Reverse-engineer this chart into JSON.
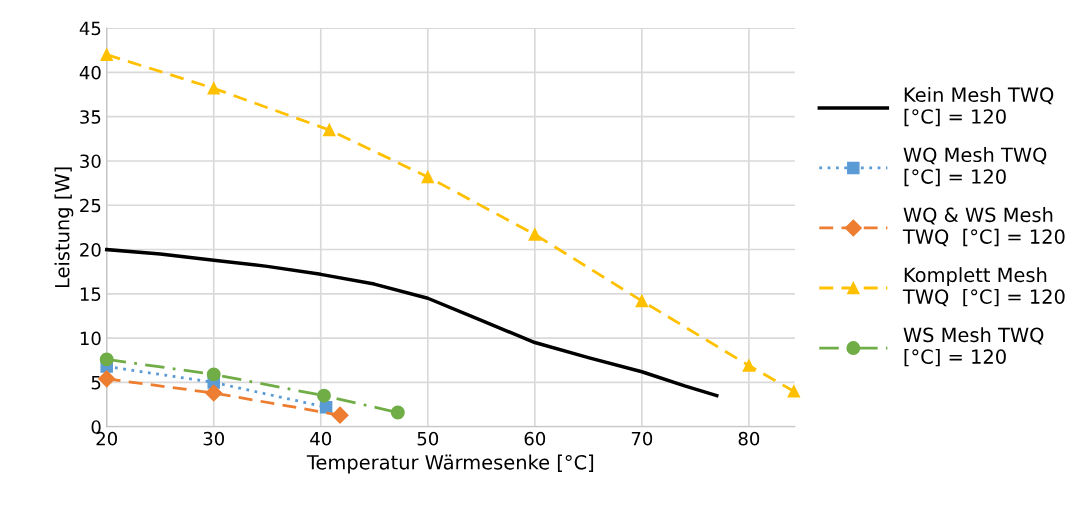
{
  "chart_data": {
    "type": "line",
    "xlabel": "Temperatur Wärmesenke [°C]",
    "ylabel": "Leistung [W]",
    "xlim": [
      20,
      84.3
    ],
    "xticks": [
      20,
      30,
      40,
      50,
      60,
      70,
      80
    ],
    "ylim": [
      0,
      45
    ],
    "yticks": [
      0,
      5,
      10,
      15,
      20,
      25,
      30,
      35,
      40,
      45
    ],
    "grid": true,
    "legend": "right",
    "series": [
      {
        "name": "Kein Mesh TWQ\n[°C] = 120",
        "color": "#000000",
        "marker": "none",
        "line_style": "solid",
        "x": [
          20,
          25,
          30,
          35,
          40,
          45,
          50,
          55,
          60,
          65,
          70,
          74,
          77
        ],
        "values": [
          20,
          19.5,
          18.8,
          18.1,
          17.2,
          16.1,
          14.5,
          12.0,
          9.5,
          7.8,
          6.2,
          4.6,
          3.5
        ]
      },
      {
        "name": "WQ Mesh TWQ\n[°C] = 120",
        "color": "#5b9bd5",
        "marker": "square",
        "line_style": "dotted",
        "x": [
          20,
          30,
          40.5
        ],
        "values": [
          6.8,
          5.0,
          2.2
        ]
      },
      {
        "name": "WQ & WS Mesh\nTWQ  [°C] = 120",
        "color": "#ed7d31",
        "marker": "diamond",
        "line_style": "dashed",
        "x": [
          20,
          30,
          41.8
        ],
        "values": [
          5.4,
          3.8,
          1.3
        ]
      },
      {
        "name": "Komplett Mesh\nTWQ  [°C] = 120",
        "color": "#ffc000",
        "marker": "triangle",
        "line_style": "dashed",
        "x": [
          20,
          30,
          40.8,
          50,
          60,
          70,
          80,
          84.2
        ],
        "values": [
          42,
          38.2,
          33.5,
          28.2,
          21.7,
          14.2,
          6.9,
          4.0
        ]
      },
      {
        "name": "WS Mesh TWQ\n[°C] = 120",
        "color": "#70ad47",
        "marker": "circle",
        "line_style": "dashdot",
        "x": [
          20,
          30,
          40.3,
          47.2
        ],
        "values": [
          7.6,
          5.9,
          3.5,
          1.6
        ]
      }
    ]
  }
}
